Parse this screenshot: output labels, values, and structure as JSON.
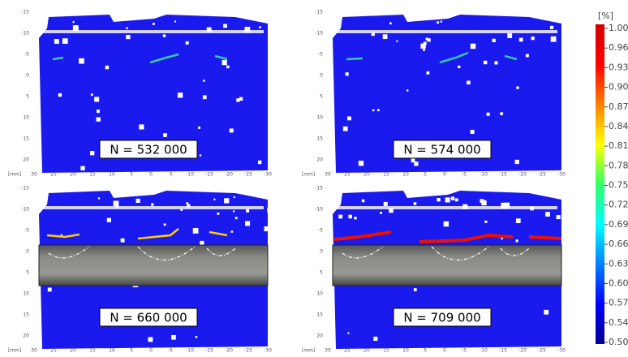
{
  "panels": [
    {
      "label": "N = 532 000"
    },
    {
      "label": "N = 574 000"
    },
    {
      "label": "N = 660 000"
    },
    {
      "label": "N = 709 000"
    }
  ],
  "y_axis": {
    "ticks": [
      "-15",
      "-10",
      "-5",
      "0",
      "5",
      "10",
      "15",
      "20"
    ]
  },
  "x_axis": {
    "unit": "[mm]",
    "ticks": [
      "30",
      "25",
      "20",
      "15",
      "10",
      "5",
      "0",
      "-5",
      "-10",
      "-15",
      "-20",
      "-25",
      "-30"
    ]
  },
  "colorbar": {
    "unit": "[%]",
    "ticks": [
      "1.00",
      "0.96",
      "0.93",
      "0.90",
      "0.87",
      "0.84",
      "0.81",
      "0.78",
      "0.75",
      "0.72",
      "0.69",
      "0.66",
      "0.63",
      "0.60",
      "0.57",
      "0.54",
      "0.50"
    ]
  }
}
